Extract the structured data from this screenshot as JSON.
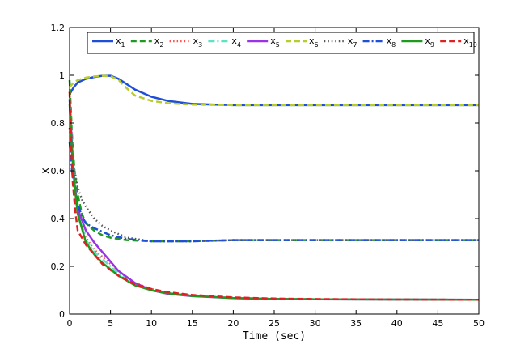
{
  "chart_data": {
    "type": "line",
    "title": "",
    "xlabel": "Time (sec)",
    "ylabel": "x",
    "xlim": [
      0,
      50
    ],
    "ylim": [
      0,
      1.2
    ],
    "xticks": [
      "0",
      "5",
      "10",
      "15",
      "20",
      "25",
      "30",
      "35",
      "40",
      "45",
      "50"
    ],
    "yticks": [
      "0",
      "0.2",
      "0.4",
      "0.6",
      "0.8",
      "1",
      "1.2"
    ],
    "grid": false,
    "legend_position": "top-right",
    "legend_columns": 10,
    "series": [
      {
        "name": "x",
        "sub": "1",
        "color": "#1f4fd8",
        "dash": "solid",
        "x": [
          0,
          0.5,
          1,
          2,
          3,
          4,
          5,
          6,
          8,
          10,
          12,
          15,
          20,
          30,
          50
        ],
        "y": [
          0.92,
          0.95,
          0.97,
          0.985,
          0.993,
          0.998,
          0.998,
          0.985,
          0.94,
          0.91,
          0.893,
          0.88,
          0.875,
          0.875,
          0.875
        ]
      },
      {
        "name": "x",
        "sub": "2",
        "color": "#1e9a1e",
        "dash": "dashed",
        "x": [
          0,
          0.3,
          0.6,
          1,
          1.5,
          2,
          3,
          4,
          5,
          7,
          10,
          15,
          20,
          30,
          50
        ],
        "y": [
          0.98,
          0.75,
          0.6,
          0.5,
          0.42,
          0.38,
          0.35,
          0.33,
          0.32,
          0.31,
          0.305,
          0.305,
          0.31,
          0.31,
          0.31
        ]
      },
      {
        "name": "x",
        "sub": "3",
        "color": "#ff4b4b",
        "dash": "dotted",
        "x": [
          0,
          0.3,
          0.6,
          1,
          2,
          3,
          4,
          6,
          8,
          10,
          12,
          15,
          20,
          25,
          30,
          40,
          50
        ],
        "y": [
          0.93,
          0.73,
          0.55,
          0.42,
          0.32,
          0.27,
          0.24,
          0.18,
          0.13,
          0.105,
          0.09,
          0.078,
          0.068,
          0.064,
          0.062,
          0.061,
          0.06
        ]
      },
      {
        "name": "x",
        "sub": "4",
        "color": "#5fe0c8",
        "dash": "dashdot",
        "x": [
          0,
          0.3,
          0.6,
          1,
          2,
          3,
          4,
          6,
          8,
          10,
          12,
          15,
          20,
          25,
          30,
          40,
          50
        ],
        "y": [
          0.9,
          0.72,
          0.56,
          0.43,
          0.31,
          0.26,
          0.23,
          0.17,
          0.125,
          0.1,
          0.088,
          0.077,
          0.068,
          0.064,
          0.062,
          0.061,
          0.06
        ]
      },
      {
        "name": "x",
        "sub": "5",
        "color": "#9a32e6",
        "dash": "solid",
        "x": [
          0,
          0.3,
          0.6,
          1,
          2,
          3,
          4,
          5,
          6,
          8,
          10,
          12,
          15,
          20,
          25,
          30,
          40,
          50
        ],
        "y": [
          0.9,
          0.7,
          0.55,
          0.44,
          0.35,
          0.3,
          0.26,
          0.22,
          0.18,
          0.13,
          0.1,
          0.085,
          0.075,
          0.067,
          0.063,
          0.062,
          0.061,
          0.06
        ]
      },
      {
        "name": "x",
        "sub": "6",
        "color": "#b8cc2e",
        "dash": "dashed",
        "x": [
          0,
          0.5,
          1,
          2,
          3,
          4,
          5,
          6,
          7,
          8,
          10,
          12,
          15,
          20,
          30,
          50
        ],
        "y": [
          0.95,
          0.97,
          0.98,
          0.99,
          0.995,
          0.998,
          0.996,
          0.98,
          0.945,
          0.915,
          0.893,
          0.883,
          0.877,
          0.875,
          0.875,
          0.875
        ]
      },
      {
        "name": "x",
        "sub": "7",
        "color": "#555555",
        "dash": "dotted",
        "x": [
          0,
          0.5,
          1,
          1.5,
          2,
          3,
          4,
          5,
          7,
          10,
          15,
          20,
          30,
          50
        ],
        "y": [
          0.78,
          0.62,
          0.53,
          0.48,
          0.45,
          0.4,
          0.37,
          0.35,
          0.32,
          0.305,
          0.305,
          0.31,
          0.31,
          0.31
        ]
      },
      {
        "name": "x",
        "sub": "8",
        "color": "#1f4fd8",
        "dash": "dashdot",
        "x": [
          0,
          0.3,
          0.6,
          1,
          1.5,
          2,
          3,
          4,
          5,
          7,
          10,
          15,
          20,
          30,
          50
        ],
        "y": [
          0.72,
          0.6,
          0.52,
          0.46,
          0.41,
          0.38,
          0.36,
          0.345,
          0.33,
          0.315,
          0.305,
          0.305,
          0.31,
          0.31,
          0.31
        ]
      },
      {
        "name": "x",
        "sub": "9",
        "color": "#1e9a1e",
        "dash": "solid",
        "x": [
          0,
          0.3,
          0.6,
          1,
          2,
          3,
          4,
          6,
          8,
          10,
          12,
          15,
          20,
          25,
          30,
          40,
          50
        ],
        "y": [
          0.88,
          0.68,
          0.54,
          0.42,
          0.3,
          0.25,
          0.215,
          0.16,
          0.12,
          0.1,
          0.087,
          0.076,
          0.067,
          0.063,
          0.062,
          0.061,
          0.06
        ]
      },
      {
        "name": "x",
        "sub": "10",
        "color": "#e02020",
        "dash": "dashed",
        "x": [
          0,
          0.2,
          0.4,
          0.7,
          1,
          2,
          3,
          4,
          6,
          8,
          10,
          12,
          15,
          20,
          25,
          30,
          40,
          50
        ],
        "y": [
          0.93,
          0.7,
          0.55,
          0.43,
          0.35,
          0.29,
          0.25,
          0.21,
          0.16,
          0.125,
          0.105,
          0.092,
          0.08,
          0.07,
          0.065,
          0.063,
          0.061,
          0.06
        ]
      }
    ]
  }
}
